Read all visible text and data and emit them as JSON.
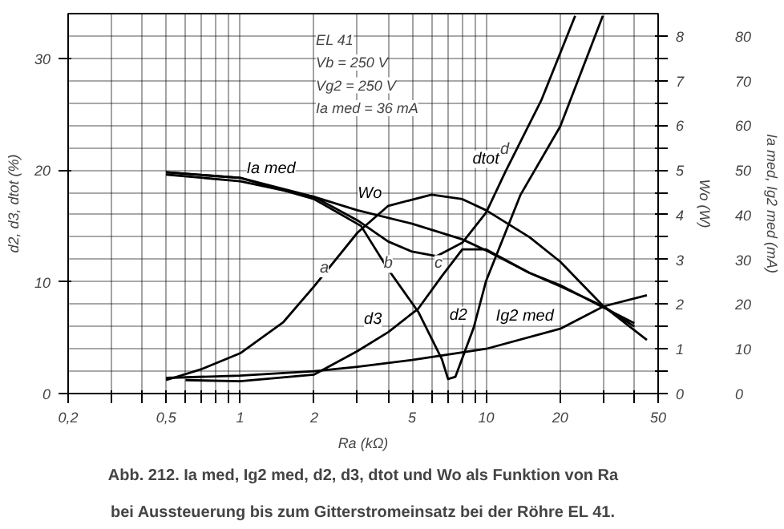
{
  "chart_data": {
    "type": "line",
    "title": "Abb. 212. Ia med, Ig2 med, d2, d3, dtot und Wo als Funktion von Ra bei Aussteuerung bis zum Gitterstromeinsatz bei der Röhre EL 41.",
    "xlabel": "Ra (kΩ)",
    "ylabel": "d2, d3, dtot (%)",
    "y2label": "Wo (W)",
    "y3label": "Ia med, Ig2 med (mA)",
    "log": "x",
    "grid": true,
    "line_style": "solid",
    "xlim": [
      0.2,
      50
    ],
    "xticks": [
      {
        "value": 0.2,
        "label": "0,2"
      },
      {
        "value": 0.3,
        "label": null
      },
      {
        "value": 0.4,
        "label": null
      },
      {
        "value": 0.5,
        "label": "0,5"
      },
      {
        "value": 0.6,
        "label": null
      },
      {
        "value": 0.7,
        "label": null
      },
      {
        "value": 0.8,
        "label": null
      },
      {
        "value": 0.9,
        "label": null
      },
      1,
      2,
      {
        "value": 3,
        "label": null
      },
      {
        "value": 4,
        "label": null
      },
      5,
      {
        "value": 6,
        "label": null
      },
      {
        "value": 7,
        "label": null
      },
      {
        "value": 8,
        "label": null
      },
      {
        "value": 9,
        "label": null
      },
      10,
      20,
      {
        "value": 30,
        "label": null
      },
      {
        "value": 40,
        "label": null
      },
      50
    ],
    "ylim": [
      0,
      34
    ],
    "yticks": [
      0,
      10,
      20,
      30
    ],
    "y2lim": [
      0,
      8.5
    ],
    "y2ticks": [
      0,
      {
        "value": 0.5,
        "label": null
      },
      1,
      {
        "value": 1.5,
        "label": null
      },
      2,
      {
        "value": 2.5,
        "label": null
      },
      3,
      {
        "value": 3.5,
        "label": null
      },
      4,
      {
        "value": 4.5,
        "label": null
      },
      5,
      {
        "value": 5.5,
        "label": null
      },
      6,
      {
        "value": 6.5,
        "label": null
      },
      7,
      {
        "value": 7.5,
        "label": null
      },
      8
    ],
    "y3lim": [
      0,
      85
    ],
    "y3ticks": [
      0,
      10,
      20,
      30,
      40,
      50,
      60,
      70,
      80
    ],
    "series": [
      {
        "name": "Ia med",
        "color": "#000000",
        "axis": "y3",
        "x": [
          0.5,
          1,
          2,
          3,
          5,
          8,
          10,
          15,
          20,
          30,
          40
        ],
        "values": [
          49,
          47.5,
          44,
          41,
          38,
          34.5,
          32,
          27,
          24,
          19.5,
          15
        ]
      },
      {
        "name": "Ig2 med",
        "color": "#000000",
        "axis": "y3",
        "x": [
          0.5,
          1,
          2,
          3,
          5,
          10,
          20,
          30,
          45
        ],
        "values": [
          3.5,
          4,
          5,
          6,
          7.5,
          10,
          14.5,
          19.5,
          22
        ]
      },
      {
        "name": "Wo",
        "color": "#000000",
        "axis": "y2",
        "x": [
          0.5,
          0.7,
          1,
          1.5,
          2,
          3,
          4,
          6,
          8,
          10,
          15,
          20,
          30,
          45
        ],
        "values": [
          0.3,
          0.55,
          0.9,
          1.6,
          2.4,
          3.6,
          4.2,
          4.45,
          4.35,
          4.1,
          3.5,
          2.95,
          1.95,
          1.2
        ]
      },
      {
        "name": "dtot",
        "color": "#000000",
        "axis": "y",
        "x": [
          0.5,
          1,
          2,
          3,
          4,
          5,
          6.3,
          8,
          10,
          12,
          16.8,
          23
        ],
        "values": [
          19.8,
          19.3,
          17.6,
          15.5,
          13.6,
          12.7,
          12.3,
          13.5,
          16.2,
          19.9,
          26.3,
          33.8
        ]
      },
      {
        "name": "d2",
        "color": "#000000",
        "axis": "y",
        "x": [
          0.5,
          1,
          2,
          3.1,
          4,
          5.3,
          6.6,
          7,
          7.5,
          8.9,
          10,
          13.8,
          20,
          29.8
        ],
        "values": [
          19.8,
          19.3,
          17.4,
          15,
          11.1,
          7.3,
          3.1,
          1.3,
          1.5,
          5.9,
          10.1,
          17.8,
          23.9,
          33.8
        ]
      },
      {
        "name": "d3",
        "color": "#000000",
        "axis": "y",
        "x": [
          0.6,
          1,
          2,
          3,
          4,
          5.3,
          6.6,
          8,
          10,
          15,
          20,
          30,
          40
        ],
        "values": [
          1.2,
          1.1,
          1.7,
          3.8,
          5.5,
          7.6,
          10.5,
          12.9,
          12.9,
          10.8,
          9.7,
          7.7,
          6.3
        ]
      }
    ],
    "annotations": [
      "EL 41",
      "Vb = 250 V",
      "Vg2 = 250 V",
      "Ia med = 36 mA",
      {
        "text": "a",
        "x": 2.2,
        "y": 10.4
      },
      {
        "text": "b",
        "x": 4.0,
        "y": 10.8
      },
      {
        "text": "c",
        "x": 6.4,
        "y": 10.8
      },
      {
        "text": "d",
        "x": 11.9,
        "y": 21
      }
    ]
  }
}
